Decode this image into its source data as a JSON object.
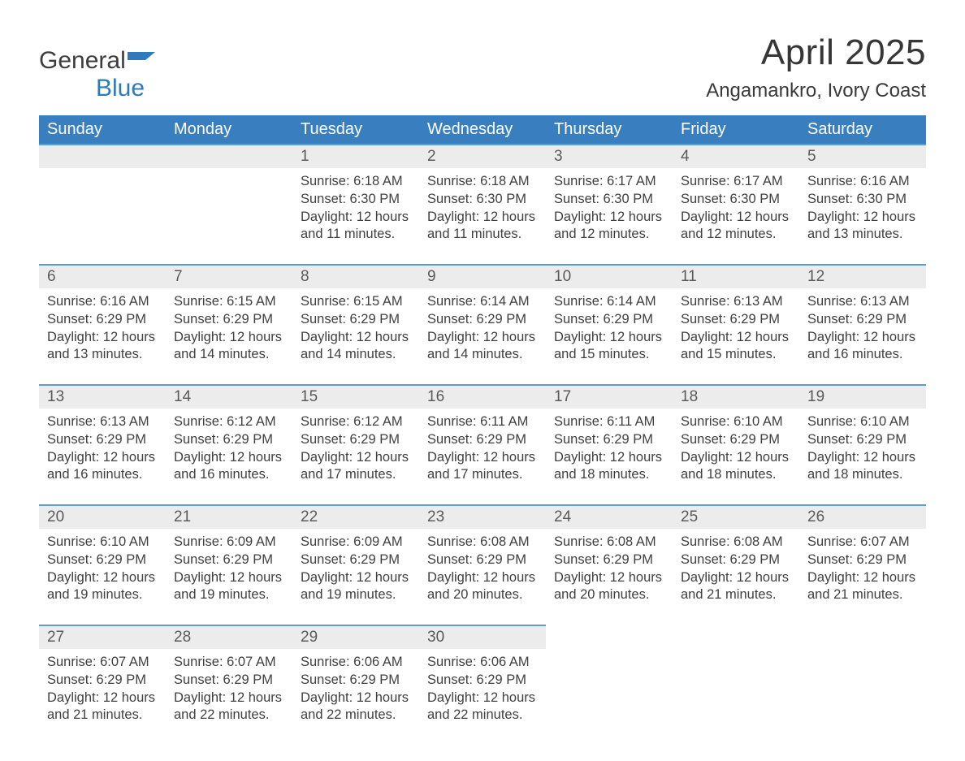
{
  "logo": {
    "word1": "General",
    "word2": "Blue",
    "flag_color": "#2f79bd"
  },
  "title": {
    "month_year": "April 2025",
    "location": "Angamankro, Ivory Coast"
  },
  "colors": {
    "header_bg": "#397fbf",
    "header_text": "#ffffff",
    "band_bg": "#ececec",
    "band_border": "#5e9bd1",
    "body_text": "#404040",
    "accent": "#2f79bd"
  },
  "labels": {
    "sunrise_prefix": "Sunrise: ",
    "sunset_prefix": "Sunset: ",
    "daylight_prefix": "Daylight: "
  },
  "day_headers": [
    "Sunday",
    "Monday",
    "Tuesday",
    "Wednesday",
    "Thursday",
    "Friday",
    "Saturday"
  ],
  "weeks": [
    [
      {
        "empty": true
      },
      {
        "empty": true
      },
      {
        "num": "1",
        "sunrise": "6:18 AM",
        "sunset": "6:30 PM",
        "daylight": "12 hours and 11 minutes."
      },
      {
        "num": "2",
        "sunrise": "6:18 AM",
        "sunset": "6:30 PM",
        "daylight": "12 hours and 11 minutes."
      },
      {
        "num": "3",
        "sunrise": "6:17 AM",
        "sunset": "6:30 PM",
        "daylight": "12 hours and 12 minutes."
      },
      {
        "num": "4",
        "sunrise": "6:17 AM",
        "sunset": "6:30 PM",
        "daylight": "12 hours and 12 minutes."
      },
      {
        "num": "5",
        "sunrise": "6:16 AM",
        "sunset": "6:30 PM",
        "daylight": "12 hours and 13 minutes."
      }
    ],
    [
      {
        "num": "6",
        "sunrise": "6:16 AM",
        "sunset": "6:29 PM",
        "daylight": "12 hours and 13 minutes."
      },
      {
        "num": "7",
        "sunrise": "6:15 AM",
        "sunset": "6:29 PM",
        "daylight": "12 hours and 14 minutes."
      },
      {
        "num": "8",
        "sunrise": "6:15 AM",
        "sunset": "6:29 PM",
        "daylight": "12 hours and 14 minutes."
      },
      {
        "num": "9",
        "sunrise": "6:14 AM",
        "sunset": "6:29 PM",
        "daylight": "12 hours and 14 minutes."
      },
      {
        "num": "10",
        "sunrise": "6:14 AM",
        "sunset": "6:29 PM",
        "daylight": "12 hours and 15 minutes."
      },
      {
        "num": "11",
        "sunrise": "6:13 AM",
        "sunset": "6:29 PM",
        "daylight": "12 hours and 15 minutes."
      },
      {
        "num": "12",
        "sunrise": "6:13 AM",
        "sunset": "6:29 PM",
        "daylight": "12 hours and 16 minutes."
      }
    ],
    [
      {
        "num": "13",
        "sunrise": "6:13 AM",
        "sunset": "6:29 PM",
        "daylight": "12 hours and 16 minutes."
      },
      {
        "num": "14",
        "sunrise": "6:12 AM",
        "sunset": "6:29 PM",
        "daylight": "12 hours and 16 minutes."
      },
      {
        "num": "15",
        "sunrise": "6:12 AM",
        "sunset": "6:29 PM",
        "daylight": "12 hours and 17 minutes."
      },
      {
        "num": "16",
        "sunrise": "6:11 AM",
        "sunset": "6:29 PM",
        "daylight": "12 hours and 17 minutes."
      },
      {
        "num": "17",
        "sunrise": "6:11 AM",
        "sunset": "6:29 PM",
        "daylight": "12 hours and 18 minutes."
      },
      {
        "num": "18",
        "sunrise": "6:10 AM",
        "sunset": "6:29 PM",
        "daylight": "12 hours and 18 minutes."
      },
      {
        "num": "19",
        "sunrise": "6:10 AM",
        "sunset": "6:29 PM",
        "daylight": "12 hours and 18 minutes."
      }
    ],
    [
      {
        "num": "20",
        "sunrise": "6:10 AM",
        "sunset": "6:29 PM",
        "daylight": "12 hours and 19 minutes."
      },
      {
        "num": "21",
        "sunrise": "6:09 AM",
        "sunset": "6:29 PM",
        "daylight": "12 hours and 19 minutes."
      },
      {
        "num": "22",
        "sunrise": "6:09 AM",
        "sunset": "6:29 PM",
        "daylight": "12 hours and 19 minutes."
      },
      {
        "num": "23",
        "sunrise": "6:08 AM",
        "sunset": "6:29 PM",
        "daylight": "12 hours and 20 minutes."
      },
      {
        "num": "24",
        "sunrise": "6:08 AM",
        "sunset": "6:29 PM",
        "daylight": "12 hours and 20 minutes."
      },
      {
        "num": "25",
        "sunrise": "6:08 AM",
        "sunset": "6:29 PM",
        "daylight": "12 hours and 21 minutes."
      },
      {
        "num": "26",
        "sunrise": "6:07 AM",
        "sunset": "6:29 PM",
        "daylight": "12 hours and 21 minutes."
      }
    ],
    [
      {
        "num": "27",
        "sunrise": "6:07 AM",
        "sunset": "6:29 PM",
        "daylight": "12 hours and 21 minutes."
      },
      {
        "num": "28",
        "sunrise": "6:07 AM",
        "sunset": "6:29 PM",
        "daylight": "12 hours and 22 minutes."
      },
      {
        "num": "29",
        "sunrise": "6:06 AM",
        "sunset": "6:29 PM",
        "daylight": "12 hours and 22 minutes."
      },
      {
        "num": "30",
        "sunrise": "6:06 AM",
        "sunset": "6:29 PM",
        "daylight": "12 hours and 22 minutes."
      },
      {
        "trailing": true
      },
      {
        "trailing": true
      },
      {
        "trailing": true
      }
    ]
  ]
}
